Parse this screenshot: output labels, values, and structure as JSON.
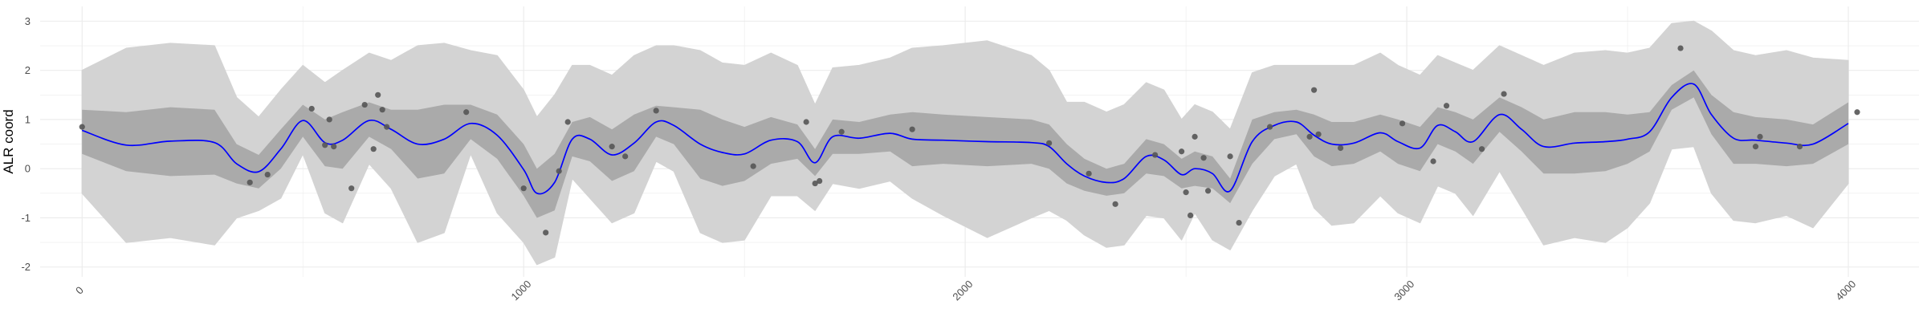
{
  "chart_data": {
    "type": "line",
    "title": "",
    "xlabel": "",
    "ylabel": "ALR coord",
    "xlim": [
      -95,
      4160
    ],
    "ylim": [
      -2.2,
      3.3
    ],
    "x_ticks": [
      0,
      1000,
      2000,
      3000,
      4000
    ],
    "x_tick_labels": [
      "0",
      "1000",
      "2000",
      "3000",
      "4000"
    ],
    "y_ticks": [
      -2,
      -1,
      0,
      1,
      2,
      3
    ],
    "y_tick_labels": [
      "-2",
      "-1",
      "0",
      "1",
      "2",
      "3"
    ],
    "x_tick_angle": -45,
    "grid": true,
    "legend": "none",
    "colors": {
      "mean_line": "#0000ff",
      "inner_band": "#aaaaaa",
      "outer_band": "#d3d3d3",
      "points": "#555555",
      "grid": "#ebebeb"
    },
    "series": [
      {
        "kind": "mean",
        "x": [
          0,
          100,
          200,
          300,
          350,
          400,
          450,
          500,
          550,
          590,
          650,
          700,
          760,
          820,
          880,
          940,
          1000,
          1030,
          1070,
          1110,
          1150,
          1200,
          1250,
          1300,
          1340,
          1400,
          1450,
          1500,
          1560,
          1620,
          1660,
          1700,
          1760,
          1830,
          1880,
          1950,
          2050,
          2150,
          2190,
          2230,
          2270,
          2320,
          2360,
          2410,
          2450,
          2490,
          2520,
          2560,
          2600,
          2650,
          2700,
          2750,
          2790,
          2830,
          2880,
          2940,
          2980,
          3030,
          3070,
          3110,
          3150,
          3210,
          3260,
          3310,
          3380,
          3450,
          3500,
          3550,
          3600,
          3650,
          3690,
          3740,
          3790,
          3860,
          3920,
          4000
        ],
        "y": [
          0.78,
          0.48,
          0.56,
          0.53,
          0.1,
          -0.06,
          0.4,
          0.98,
          0.53,
          0.58,
          0.98,
          0.8,
          0.5,
          0.6,
          0.92,
          0.68,
          -0.02,
          -0.5,
          -0.28,
          0.6,
          0.6,
          0.28,
          0.52,
          0.95,
          0.88,
          0.5,
          0.33,
          0.3,
          0.58,
          0.55,
          0.12,
          0.65,
          0.62,
          0.72,
          0.6,
          0.58,
          0.55,
          0.53,
          0.45,
          0.1,
          -0.15,
          -0.28,
          -0.2,
          0.25,
          0.18,
          -0.12,
          0.0,
          -0.1,
          -0.45,
          0.55,
          0.88,
          0.95,
          0.68,
          0.5,
          0.52,
          0.73,
          0.55,
          0.42,
          0.88,
          0.75,
          0.55,
          1.1,
          0.8,
          0.45,
          0.52,
          0.55,
          0.6,
          0.75,
          1.45,
          1.72,
          1.1,
          0.62,
          0.58,
          0.52,
          0.5,
          0.92
        ]
      },
      {
        "kind": "inner_band_lower",
        "x": [
          0,
          100,
          200,
          300,
          350,
          400,
          450,
          500,
          550,
          590,
          650,
          700,
          760,
          820,
          880,
          940,
          1000,
          1030,
          1070,
          1110,
          1150,
          1200,
          1250,
          1300,
          1340,
          1400,
          1450,
          1500,
          1560,
          1620,
          1660,
          1700,
          1760,
          1830,
          1880,
          1950,
          2050,
          2150,
          2190,
          2230,
          2270,
          2320,
          2360,
          2410,
          2450,
          2490,
          2520,
          2560,
          2600,
          2650,
          2700,
          2750,
          2790,
          2830,
          2880,
          2940,
          2980,
          3030,
          3070,
          3110,
          3150,
          3210,
          3260,
          3310,
          3380,
          3450,
          3500,
          3550,
          3600,
          3650,
          3690,
          3740,
          3790,
          3860,
          3920,
          4000
        ],
        "y": [
          0.3,
          -0.05,
          -0.15,
          -0.12,
          -0.3,
          -0.4,
          0.0,
          0.65,
          0.05,
          0.0,
          0.65,
          0.4,
          -0.2,
          -0.1,
          0.6,
          0.2,
          -0.55,
          -1.0,
          -0.85,
          0.25,
          0.15,
          -0.25,
          -0.05,
          0.65,
          0.5,
          -0.2,
          -0.35,
          -0.25,
          0.1,
          0.2,
          -0.15,
          0.3,
          0.3,
          0.35,
          0.05,
          0.1,
          0.05,
          0.1,
          0.0,
          -0.3,
          -0.45,
          -0.55,
          -0.5,
          -0.1,
          -0.15,
          -0.4,
          -0.35,
          -0.4,
          -0.7,
          0.1,
          0.6,
          0.7,
          0.25,
          0.05,
          0.1,
          0.35,
          0.1,
          -0.05,
          0.5,
          0.35,
          0.1,
          0.75,
          0.35,
          -0.1,
          -0.1,
          -0.05,
          0.1,
          0.35,
          1.2,
          1.45,
          0.7,
          0.1,
          0.1,
          0.05,
          0.1,
          0.5
        ]
      },
      {
        "kind": "inner_band_upper",
        "x": [
          0,
          100,
          200,
          300,
          350,
          400,
          450,
          500,
          550,
          590,
          650,
          700,
          760,
          820,
          880,
          940,
          1000,
          1030,
          1070,
          1110,
          1150,
          1200,
          1250,
          1300,
          1340,
          1400,
          1450,
          1500,
          1560,
          1620,
          1660,
          1700,
          1760,
          1830,
          1880,
          1950,
          2050,
          2150,
          2190,
          2230,
          2270,
          2320,
          2360,
          2410,
          2450,
          2490,
          2520,
          2560,
          2600,
          2650,
          2700,
          2750,
          2790,
          2830,
          2880,
          2940,
          2980,
          3030,
          3070,
          3110,
          3150,
          3210,
          3260,
          3310,
          3380,
          3450,
          3500,
          3550,
          3600,
          3650,
          3690,
          3740,
          3790,
          3860,
          3920,
          4000
        ],
        "y": [
          1.2,
          1.15,
          1.25,
          1.2,
          0.5,
          0.28,
          0.8,
          1.3,
          1.0,
          1.15,
          1.35,
          1.2,
          1.2,
          1.3,
          1.3,
          1.1,
          0.5,
          0.0,
          0.3,
          0.95,
          1.05,
          0.8,
          1.1,
          1.28,
          1.25,
          1.2,
          1.0,
          0.85,
          1.05,
          0.9,
          0.4,
          1.0,
          0.95,
          1.1,
          1.15,
          1.1,
          1.05,
          1.0,
          0.9,
          0.5,
          0.2,
          0.0,
          0.1,
          0.6,
          0.5,
          0.2,
          0.35,
          0.25,
          -0.2,
          1.0,
          1.15,
          1.2,
          1.1,
          0.95,
          0.95,
          1.1,
          1.0,
          0.85,
          1.25,
          1.15,
          1.0,
          1.45,
          1.25,
          1.0,
          1.15,
          1.15,
          1.1,
          1.15,
          1.7,
          2.0,
          1.5,
          1.15,
          1.05,
          1.0,
          0.9,
          1.35
        ]
      },
      {
        "kind": "outer_band_lower",
        "x": [
          0,
          100,
          200,
          300,
          350,
          400,
          450,
          500,
          550,
          590,
          650,
          700,
          760,
          820,
          880,
          940,
          1000,
          1030,
          1070,
          1110,
          1150,
          1200,
          1250,
          1300,
          1340,
          1400,
          1450,
          1500,
          1560,
          1620,
          1660,
          1700,
          1760,
          1830,
          1880,
          1950,
          2050,
          2150,
          2190,
          2230,
          2270,
          2320,
          2360,
          2410,
          2450,
          2490,
          2520,
          2560,
          2600,
          2650,
          2700,
          2750,
          2790,
          2830,
          2880,
          2940,
          2980,
          3030,
          3070,
          3110,
          3150,
          3210,
          3260,
          3310,
          3380,
          3450,
          3500,
          3550,
          3600,
          3650,
          3690,
          3740,
          3790,
          3860,
          3920,
          4000
        ],
        "y": [
          -0.5,
          -1.5,
          -1.4,
          -1.55,
          -1.0,
          -0.85,
          -0.6,
          0.3,
          -0.9,
          -1.1,
          0.1,
          -0.4,
          -1.5,
          -1.3,
          0.3,
          -0.9,
          -1.5,
          -1.95,
          -1.8,
          -0.2,
          -0.6,
          -1.1,
          -0.9,
          0.15,
          -0.05,
          -1.3,
          -1.5,
          -1.45,
          -0.55,
          -0.55,
          -0.85,
          -0.3,
          -0.4,
          -0.25,
          -0.6,
          -0.95,
          -1.4,
          -1.0,
          -0.85,
          -1.05,
          -1.35,
          -1.6,
          -1.55,
          -0.95,
          -1.0,
          -1.45,
          -0.9,
          -1.45,
          -1.65,
          -0.85,
          -0.15,
          0.1,
          -0.8,
          -1.15,
          -1.1,
          -0.55,
          -0.9,
          -1.1,
          -0.35,
          -0.5,
          -0.95,
          -0.05,
          -0.8,
          -1.55,
          -1.4,
          -1.5,
          -1.2,
          -0.7,
          0.4,
          0.45,
          -0.5,
          -1.05,
          -1.1,
          -0.95,
          -1.2,
          -0.3
        ]
      },
      {
        "kind": "outer_band_upper",
        "x": [
          0,
          100,
          200,
          300,
          350,
          400,
          450,
          500,
          550,
          590,
          650,
          700,
          760,
          820,
          880,
          940,
          1000,
          1030,
          1070,
          1110,
          1150,
          1200,
          1250,
          1300,
          1340,
          1400,
          1450,
          1500,
          1560,
          1620,
          1660,
          1700,
          1760,
          1830,
          1880,
          1950,
          2050,
          2150,
          2190,
          2230,
          2270,
          2320,
          2360,
          2410,
          2450,
          2490,
          2520,
          2560,
          2600,
          2650,
          2700,
          2750,
          2790,
          2830,
          2880,
          2940,
          2980,
          3030,
          3070,
          3110,
          3150,
          3210,
          3260,
          3310,
          3380,
          3450,
          3500,
          3550,
          3600,
          3650,
          3690,
          3740,
          3790,
          3860,
          3920,
          4000
        ],
        "y": [
          2.0,
          2.45,
          2.55,
          2.5,
          1.45,
          1.05,
          1.6,
          2.1,
          1.75,
          2.0,
          2.35,
          2.2,
          2.5,
          2.55,
          2.4,
          2.3,
          1.6,
          1.05,
          1.5,
          2.1,
          2.1,
          1.9,
          2.3,
          2.5,
          2.5,
          2.4,
          2.15,
          2.1,
          2.35,
          2.1,
          1.3,
          2.05,
          2.1,
          2.25,
          2.45,
          2.5,
          2.6,
          2.3,
          2.0,
          1.35,
          1.35,
          1.15,
          1.3,
          1.75,
          1.6,
          1.0,
          1.3,
          1.15,
          0.8,
          1.95,
          2.1,
          2.1,
          2.1,
          2.1,
          2.1,
          2.35,
          2.1,
          1.9,
          2.3,
          2.15,
          2.0,
          2.5,
          2.3,
          2.1,
          2.35,
          2.4,
          2.35,
          2.45,
          2.95,
          3.0,
          2.8,
          2.4,
          2.3,
          2.4,
          2.25,
          2.2
        ]
      }
    ],
    "points": {
      "x": [
        0,
        380,
        420,
        520,
        550,
        560,
        570,
        610,
        640,
        660,
        670,
        680,
        690,
        870,
        1000,
        1050,
        1080,
        1100,
        1200,
        1230,
        1300,
        1520,
        1640,
        1660,
        1670,
        1720,
        1880,
        2190,
        2280,
        2340,
        2430,
        2490,
        2500,
        2510,
        2520,
        2540,
        2550,
        2600,
        2620,
        2690,
        2780,
        2790,
        2800,
        2850,
        2990,
        3060,
        3090,
        3170,
        3220,
        3620,
        3790,
        3800,
        3890,
        4020
      ],
      "y": [
        0.85,
        -0.28,
        -0.12,
        1.22,
        0.48,
        1.0,
        0.45,
        -0.4,
        1.3,
        0.4,
        1.5,
        1.2,
        0.85,
        1.15,
        -0.4,
        -1.3,
        -0.05,
        0.95,
        0.45,
        0.25,
        1.18,
        0.05,
        0.95,
        -0.3,
        -0.25,
        0.75,
        0.8,
        0.52,
        -0.1,
        -0.72,
        0.28,
        0.35,
        -0.48,
        -0.95,
        0.65,
        0.22,
        -0.45,
        0.25,
        -1.1,
        0.85,
        0.65,
        1.6,
        0.7,
        0.42,
        0.92,
        0.15,
        1.28,
        0.4,
        1.52,
        2.45,
        0.45,
        0.65,
        0.45,
        1.15
      ]
    }
  }
}
